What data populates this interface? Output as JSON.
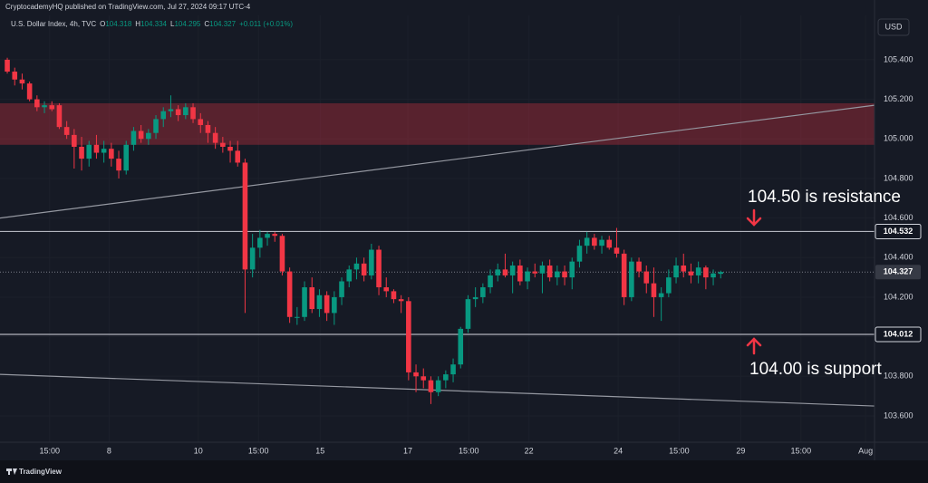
{
  "chart_data": {
    "type": "candlestick",
    "header": "CryptocademyHQ published on TradingView.com, Jul 27, 2024 09:17 UTC-4",
    "symbol": "U.S. Dollar Index, 4h, TVC",
    "legend": [
      {
        "key": "O",
        "text": "104.318"
      },
      {
        "key": "H",
        "text": "104.334"
      },
      {
        "key": "L",
        "text": "104.295"
      },
      {
        "key": "C",
        "text": "104.327"
      },
      {
        "key": "",
        "text": "+0.011 (+0.01%)"
      }
    ],
    "currency": "USD",
    "brand": "TradingView",
    "up_color": "#089981",
    "down_color": "#f23645",
    "open": [
      105.4,
      105.34,
      105.3,
      105.28,
      105.2,
      105.16,
      105.17,
      105.17,
      105.06,
      105.02,
      104.96,
      104.9,
      104.97,
      104.93,
      104.95,
      104.9,
      104.84,
      104.97,
      105.04,
      105.0,
      105.03,
      105.1,
      105.14,
      105.15,
      105.12,
      105.16,
      105.1,
      105.07,
      105.03,
      104.98,
      104.96,
      104.94,
      104.88,
      104.34,
      104.45,
      104.5,
      104.52,
      104.51,
      104.33,
      104.1,
      104.1,
      104.25,
      104.14,
      104.21,
      104.12,
      104.2,
      104.28,
      104.34,
      104.37,
      104.31,
      104.44,
      104.25,
      104.23,
      104.19,
      104.18,
      103.82,
      103.8,
      103.78,
      103.72,
      103.78,
      103.81,
      103.86,
      104.04,
      104.19,
      104.2,
      104.25,
      104.31,
      104.34,
      104.31,
      104.36,
      104.28,
      104.33,
      104.32,
      104.36,
      104.3,
      104.33,
      104.3,
      104.38,
      104.46,
      104.5,
      104.46,
      104.49,
      104.45,
      104.42,
      104.2,
      104.38,
      104.33,
      104.27,
      104.2,
      104.22,
      104.3,
      104.36,
      104.33,
      104.31,
      104.35,
      104.3,
      104.318
    ],
    "high": [
      105.41,
      105.36,
      105.33,
      105.29,
      105.22,
      105.19,
      105.19,
      105.18,
      105.09,
      105.05,
      105.01,
      104.99,
      105.02,
      104.99,
      104.98,
      104.94,
      104.99,
      105.06,
      105.07,
      105.05,
      105.12,
      105.16,
      105.22,
      105.17,
      105.18,
      105.18,
      105.13,
      105.09,
      105.06,
      105.01,
      104.99,
      104.99,
      104.9,
      104.52,
      104.54,
      104.53,
      104.53,
      104.52,
      104.35,
      104.15,
      104.28,
      104.3,
      104.24,
      104.23,
      104.23,
      104.3,
      104.36,
      104.4,
      104.4,
      104.47,
      104.46,
      104.3,
      104.24,
      104.21,
      104.2,
      103.86,
      103.84,
      103.8,
      103.8,
      103.83,
      103.89,
      104.05,
      104.21,
      104.25,
      104.27,
      104.34,
      104.37,
      104.42,
      104.38,
      104.39,
      104.35,
      104.37,
      104.38,
      104.39,
      104.36,
      104.36,
      104.4,
      104.49,
      104.53,
      104.52,
      104.51,
      104.51,
      104.55,
      104.44,
      104.4,
      104.4,
      104.36,
      104.35,
      104.25,
      104.34,
      104.4,
      104.42,
      104.37,
      104.38,
      104.36,
      104.34,
      104.334
    ],
    "low": [
      105.33,
      105.27,
      105.25,
      105.19,
      105.14,
      105.13,
      105.14,
      105.05,
      105.0,
      104.85,
      104.84,
      104.86,
      104.9,
      104.88,
      104.86,
      104.8,
      104.82,
      104.94,
      104.98,
      104.97,
      105.0,
      105.06,
      105.11,
      105.09,
      105.1,
      105.08,
      105.03,
      104.98,
      104.95,
      104.93,
      104.88,
      104.86,
      104.12,
      104.3,
      104.4,
      104.46,
      104.48,
      104.31,
      104.07,
      104.06,
      104.08,
      104.12,
      104.1,
      104.08,
      104.06,
      104.16,
      104.25,
      104.29,
      104.28,
      104.29,
      104.21,
      104.2,
      104.17,
      104.12,
      103.78,
      103.72,
      103.74,
      103.66,
      103.7,
      103.74,
      103.77,
      103.84,
      104.02,
      104.15,
      104.17,
      104.22,
      104.28,
      104.3,
      104.22,
      104.26,
      104.24,
      104.3,
      104.22,
      104.28,
      104.26,
      104.26,
      104.24,
      104.35,
      104.42,
      104.44,
      104.42,
      104.44,
      104.4,
      104.16,
      104.18,
      104.3,
      104.22,
      104.1,
      104.08,
      104.2,
      104.27,
      104.3,
      104.27,
      104.27,
      104.24,
      104.26,
      104.295
    ],
    "close": [
      105.34,
      105.3,
      105.28,
      105.2,
      105.16,
      105.17,
      105.15,
      105.06,
      105.02,
      104.96,
      104.9,
      104.97,
      104.93,
      104.95,
      104.9,
      104.84,
      104.97,
      105.04,
      105.0,
      105.03,
      105.1,
      105.14,
      105.15,
      105.12,
      105.16,
      105.1,
      105.07,
      105.03,
      104.98,
      104.96,
      104.94,
      104.88,
      104.34,
      104.45,
      104.5,
      104.52,
      104.51,
      104.33,
      104.1,
      104.1,
      104.25,
      104.14,
      104.21,
      104.12,
      104.2,
      104.28,
      104.34,
      104.37,
      104.31,
      104.44,
      104.25,
      104.23,
      104.19,
      104.18,
      103.82,
      103.8,
      103.78,
      103.72,
      103.78,
      103.81,
      103.86,
      104.04,
      104.19,
      104.2,
      104.25,
      104.31,
      104.34,
      104.31,
      104.36,
      104.28,
      104.33,
      104.32,
      104.36,
      104.3,
      104.33,
      104.3,
      104.38,
      104.46,
      104.5,
      104.46,
      104.49,
      104.45,
      104.42,
      104.2,
      104.38,
      104.33,
      104.27,
      104.2,
      104.22,
      104.3,
      104.36,
      104.33,
      104.31,
      104.35,
      104.3,
      104.32,
      104.327
    ],
    "xlim": [
      -0.98,
      116.7
    ],
    "xticks": [
      {
        "value": 5.7,
        "label": "15:00"
      },
      {
        "value": 13.7,
        "label": "8"
      },
      {
        "value": 25.7,
        "label": "10"
      },
      {
        "value": 33.8,
        "label": "15:00"
      },
      {
        "value": 42.1,
        "label": "15"
      },
      {
        "value": 53.9,
        "label": "17"
      },
      {
        "value": 62.1,
        "label": "15:00"
      },
      {
        "value": 70.2,
        "label": "22"
      },
      {
        "value": 82.2,
        "label": "24"
      },
      {
        "value": 90.4,
        "label": "15:00"
      },
      {
        "value": 98.7,
        "label": "29"
      },
      {
        "value": 106.8,
        "label": "15:00"
      },
      {
        "value": 115.5,
        "label": "Aug"
      }
    ],
    "ylim": [
      103.467,
      105.624
    ],
    "yticks": [
      {
        "value": 103.6,
        "label": "103.600"
      },
      {
        "value": 103.8,
        "label": "103.800"
      },
      {
        "value": 104.0,
        "label": "104.000"
      },
      {
        "value": 104.2,
        "label": "104.200"
      },
      {
        "value": 104.4,
        "label": "104.400"
      },
      {
        "value": 104.6,
        "label": "104.600"
      },
      {
        "value": 104.8,
        "label": "104.800"
      },
      {
        "value": 105.0,
        "label": "105.000"
      },
      {
        "value": 105.2,
        "label": "105.200"
      },
      {
        "value": 105.4,
        "label": "105.400"
      }
    ],
    "zone": {
      "low": 104.97,
      "high": 105.18,
      "color": "#f23645"
    },
    "levels": [
      {
        "value": 104.532,
        "label": "104.532"
      },
      {
        "value": 104.012,
        "label": "104.012"
      }
    ],
    "last_price": {
      "value": 104.327,
      "label": "104.327"
    },
    "trendlines": [
      {
        "x": [
          -0.98,
          116.7
        ],
        "y": [
          104.6,
          105.17
        ]
      },
      {
        "x": [
          -0.98,
          116.7
        ],
        "y": [
          103.81,
          103.65
        ]
      }
    ],
    "annotations": [
      "104.50 is resistance",
      "104.00 is support"
    ]
  }
}
